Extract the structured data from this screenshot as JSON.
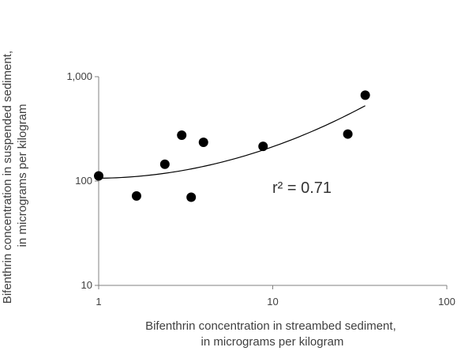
{
  "chart_data": {
    "type": "scatter",
    "x_scale": "log",
    "y_scale": "log",
    "xlim": [
      1,
      100
    ],
    "ylim": [
      10,
      1000
    ],
    "x_ticks": [
      1,
      10,
      100
    ],
    "y_ticks": [
      10,
      100,
      1000
    ],
    "x_tick_labels": [
      "1",
      "10",
      "100"
    ],
    "y_tick_labels": [
      "10",
      "100",
      "1,000"
    ],
    "xlabel": [
      "Bifenthrin concentration in streambed sediment,",
      "in micrograms per kilogram"
    ],
    "ylabel": [
      "Bifenthrin concentration in suspended sediment,",
      "in micrograms per kilogram"
    ],
    "grid": false,
    "legend": "none",
    "points": [
      {
        "x": 1.0,
        "y": 112
      },
      {
        "x": 1.65,
        "y": 72
      },
      {
        "x": 2.4,
        "y": 145
      },
      {
        "x": 3.0,
        "y": 275
      },
      {
        "x": 3.4,
        "y": 70
      },
      {
        "x": 4.0,
        "y": 235
      },
      {
        "x": 8.8,
        "y": 215
      },
      {
        "x": 27,
        "y": 282
      },
      {
        "x": 34,
        "y": 665
      }
    ],
    "trendline": {
      "type": "quadratic-curve",
      "x": [
        1,
        3,
        10,
        20,
        34
      ],
      "y": [
        105,
        130,
        210,
        330,
        540
      ]
    },
    "annotations": [
      {
        "text": "r² = 0.71"
      }
    ],
    "colors": {
      "points": "#000000",
      "trendline": "#000000",
      "axis": "#808080",
      "text": "#404040"
    }
  }
}
